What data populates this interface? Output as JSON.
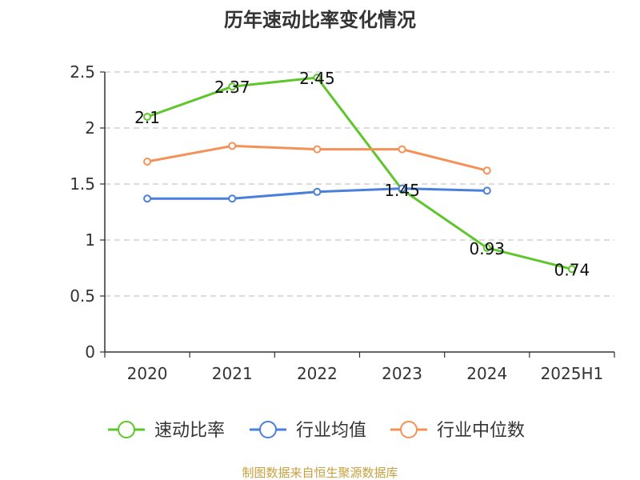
{
  "chart_data": {
    "type": "line",
    "title": "历年速动比率变化情况",
    "categories": [
      "2020",
      "2021",
      "2022",
      "2023",
      "2024",
      "2025H1"
    ],
    "ylim": [
      0,
      2.5
    ],
    "yticks": [
      "0",
      "0.5",
      "1",
      "1.5",
      "2",
      "2.5"
    ],
    "grid": true,
    "legend_position": "bottom",
    "series": [
      {
        "name": "速动比率",
        "color": "#5ec62a",
        "values": [
          2.1,
          2.37,
          2.45,
          1.45,
          0.93,
          0.74
        ],
        "labels": [
          "2.1",
          "2.37",
          "2.45",
          "1.45",
          "0.93",
          "0.74"
        ]
      },
      {
        "name": "行业均值",
        "color": "#4a7fdb",
        "values": [
          1.37,
          1.37,
          1.43,
          1.46,
          1.44,
          null
        ]
      },
      {
        "name": "行业中位数",
        "color": "#f59157",
        "values": [
          1.7,
          1.84,
          1.81,
          1.81,
          1.62,
          null
        ]
      }
    ],
    "source": "制图数据来自恒生聚源数据库"
  }
}
